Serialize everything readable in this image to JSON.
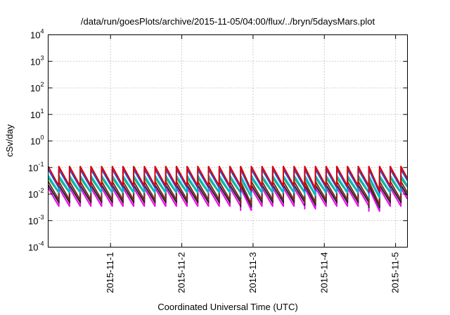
{
  "chart_data": {
    "type": "line",
    "title": "/data/run/goesPlots/archive/2015-11-05/04:00/flux/../bryn/5daysMars.plot",
    "xlabel": "Coordinated Universal Time (UTC)",
    "ylabel": "cSv/day",
    "yscale": "log",
    "ylim": [
      0.0001,
      10000
    ],
    "y_ticks": [
      {
        "base": "10",
        "exp": "-4",
        "value": 0.0001
      },
      {
        "base": "10",
        "exp": "-3",
        "value": 0.001
      },
      {
        "base": "10",
        "exp": "-2",
        "value": 0.01
      },
      {
        "base": "10",
        "exp": "-1",
        "value": 0.1
      },
      {
        "base": "10",
        "exp": "0",
        "value": 1
      },
      {
        "base": "10",
        "exp": "1",
        "value": 10
      },
      {
        "base": "10",
        "exp": "2",
        "value": 100
      },
      {
        "base": "10",
        "exp": "3",
        "value": 1000
      },
      {
        "base": "10",
        "exp": "4",
        "value": 10000
      }
    ],
    "xlim": [
      "2015-10-31T03:00",
      "2015-11-05T04:00"
    ],
    "x_ticks": [
      "2015-11-1",
      "2015-11-2",
      "2015-11-3",
      "2015-11-4",
      "2015-11-5"
    ],
    "x_tick_times": [
      "2015-11-01T00:00",
      "2015-11-02T00:00",
      "2015-11-03T00:00",
      "2015-11-04T00:00",
      "2015-11-05T00:00"
    ],
    "grid": true,
    "legend": "none",
    "pattern": {
      "period_hours": 3.6,
      "description": "sawtooth: instant rise to peak at each cycle start, decay to trough before next rise"
    },
    "series": [
      {
        "color": "#dd0000",
        "peak": 0.11,
        "trough": 0.02
      },
      {
        "color": "#1f4fe0",
        "peak": 0.085,
        "trough": 0.017
      },
      {
        "color": "#00bcd4",
        "peak": 0.05,
        "trough": 0.012
      },
      {
        "color": "#20b060",
        "peak": 0.04,
        "trough": 0.011
      },
      {
        "color": "#7a2a2a",
        "peak": 0.03,
        "trough": 0.006
      },
      {
        "color": "#222222",
        "peak": 0.022,
        "trough": 0.0048
      },
      {
        "color": "#ee00ee",
        "peak": 0.017,
        "trough": 0.0035
      }
    ],
    "dips": [
      {
        "time": "2015-11-02T19:00",
        "factor": 0.7
      },
      {
        "time": "2015-11-03T17:00",
        "factor": 0.8
      },
      {
        "time": "2015-11-04T16:00",
        "factor": 0.65
      }
    ]
  }
}
